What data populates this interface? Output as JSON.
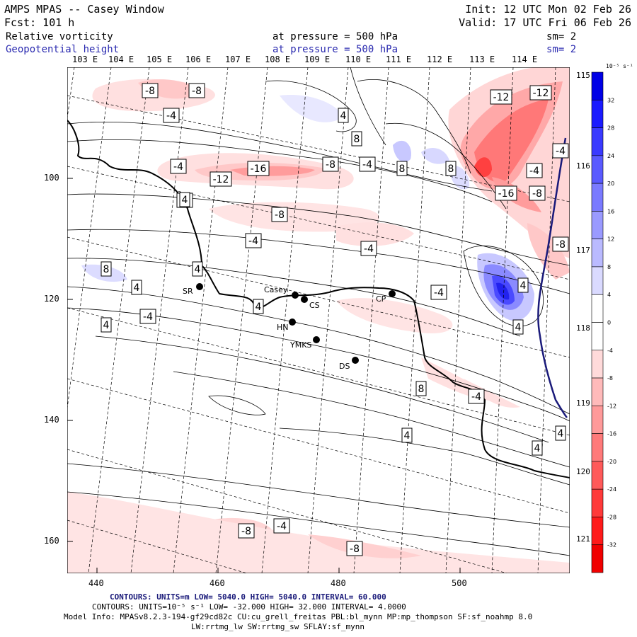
{
  "header": {
    "title": "AMPS MPAS -- Casey Window",
    "init": "Init: 12 UTC Mon 02 Feb 26",
    "fcst": "Fcst:  101 h",
    "valid": "Valid: 17 UTC Fri 06 Feb 26",
    "field1": "Relative vorticity",
    "field1_level": "at pressure =  500 hPa",
    "field1_sm": "sm= 2",
    "field2": "Geopotential height",
    "field2_level": "at pressure =  500 hPa",
    "field2_sm": "sm= 2"
  },
  "top_lon_labels": [
    "103 E",
    "104 E",
    "105 E",
    "106 E",
    "107 E",
    "108 E",
    "109 E",
    "110 E",
    "111 E",
    "112 E",
    "113 E",
    "114 E"
  ],
  "right_lon_labels": [
    "115 E",
    "116 E",
    "117 E",
    "118 E",
    "119 E",
    "120 E",
    "121 E"
  ],
  "y_ticks": [
    "100",
    "120",
    "140",
    "160"
  ],
  "x_ticks": [
    "440",
    "460",
    "480",
    "500"
  ],
  "stations": [
    {
      "id": "SR",
      "label": "SR"
    },
    {
      "id": "Casey",
      "label": "Casey"
    },
    {
      "id": "CS",
      "label": "CS"
    },
    {
      "id": "CP",
      "label": "CP"
    },
    {
      "id": "HN",
      "label": "HN"
    },
    {
      "id": "YMKS",
      "label": "YMKS"
    },
    {
      "id": "DS",
      "label": "DS"
    }
  ],
  "contour_labels": [
    "-8",
    "-8",
    "-4",
    "-4",
    "-12",
    "-16",
    "-8",
    "-4",
    "4",
    "8",
    "8",
    "8",
    "-12",
    "-12",
    "-4",
    "-4",
    "-16",
    "-8",
    "-4",
    "4",
    "-8",
    "-4",
    "-4",
    "-8",
    "8",
    "4",
    "4",
    "4",
    "-4",
    "4",
    "-4",
    "4",
    "8",
    "-4",
    "4",
    "4",
    "4",
    "4",
    "-8",
    "-4",
    "-8"
  ],
  "colorbar": {
    "unit": "10⁻⁵ s⁻¹",
    "labels": [
      "32",
      "28",
      "24",
      "20",
      "16",
      "12",
      "8",
      "4",
      "0",
      "-4",
      "-8",
      "-12",
      "-16",
      "-20",
      "-24",
      "-28",
      "-32"
    ],
    "colors": [
      "#0000e6",
      "#1a1aff",
      "#3a3aff",
      "#5a5aff",
      "#7a7aff",
      "#9a9aff",
      "#babaff",
      "#dadaff",
      "#ffffff",
      "#ffffff",
      "#ffdada",
      "#ffbaba",
      "#ff9a9a",
      "#ff7a7a",
      "#ff5a5a",
      "#ff3a3a",
      "#ff1a1a",
      "#f00000"
    ]
  },
  "footer": {
    "line1": "CONTOURS:  UNITS=m  LOW=  5040.0        HIGH=  5040.0        INTERVAL=   60.000",
    "line2": "CONTOURS:  UNITS=10⁻⁵ s⁻¹   LOW= -32.000        HIGH=  32.000        INTERVAL=   4.0000",
    "line3": "Model Info: MPASv8.2.3-194-gf29cd82c CU:cu_grell_freitas PBL:bl_mynn MP:mp_thompson SF:sf_noahmp 8.0",
    "line4": "LW:rrtmg_lw SW:rrtmg_sw SFLAY:sf_mynn"
  }
}
